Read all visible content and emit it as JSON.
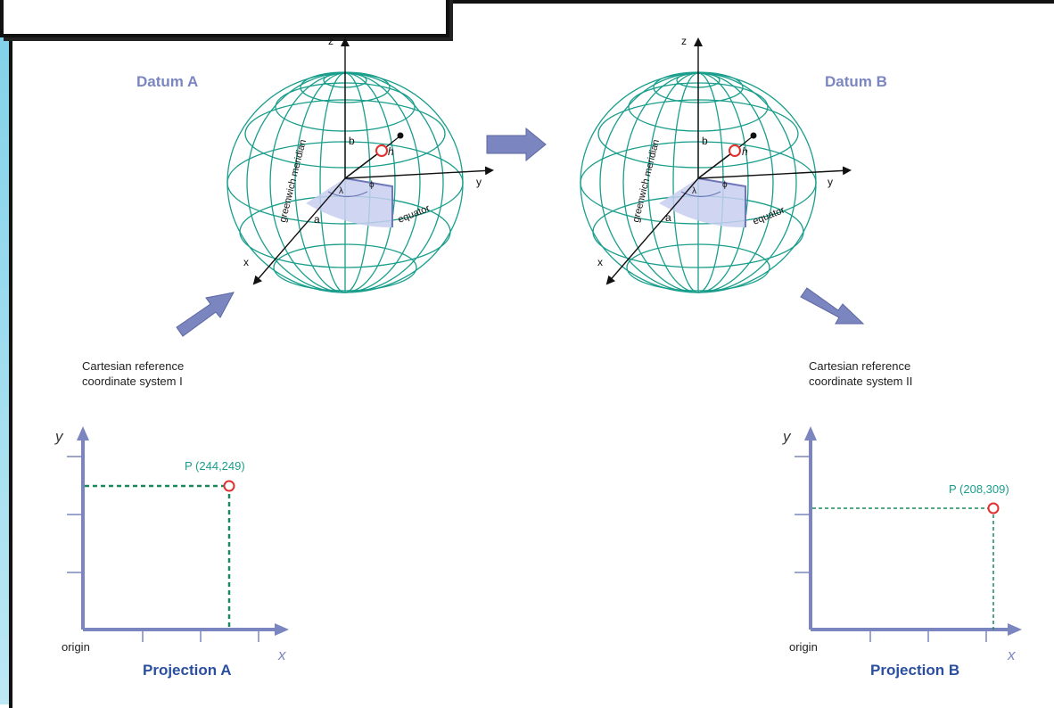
{
  "colors": {
    "teal": "#1a9e8c",
    "blue": "#7b86c0",
    "dark_blue": "#2a4fa0",
    "point": "#e03030",
    "frame": "#111111",
    "backdrop": "#3aa5c8"
  },
  "diagram": {
    "datum_a": {
      "title": "Datum A",
      "meridian_label": "greenwich meridian",
      "equator_label": "equator",
      "axis_x": "x",
      "axis_y": "y",
      "axis_z": "z",
      "label_a": "a",
      "label_b": "b",
      "label_h": "h",
      "label_lambda": "λ",
      "label_phi": "ϕ"
    },
    "datum_b": {
      "title": "Datum B",
      "meridian_label": "greenwich meridian",
      "equator_label": "equator",
      "axis_x": "x",
      "axis_y": "y",
      "axis_z": "z",
      "label_a": "a",
      "label_b": "b",
      "label_h": "h",
      "label_lambda": "λ",
      "label_phi": "ϕ"
    },
    "system_1": {
      "caption_line1": "Cartesian reference",
      "caption_line2": "coordinate system I",
      "axis_x": "x",
      "axis_y": "y",
      "origin": "origin",
      "point_label": "P (244,249)",
      "title": "Projection A"
    },
    "system_2": {
      "caption_line1": "Cartesian reference",
      "caption_line2": "coordinate system II",
      "axis_x": "x",
      "axis_y": "y",
      "origin": "origin",
      "point_label": "P (208,309)",
      "title": "Projection B"
    }
  }
}
